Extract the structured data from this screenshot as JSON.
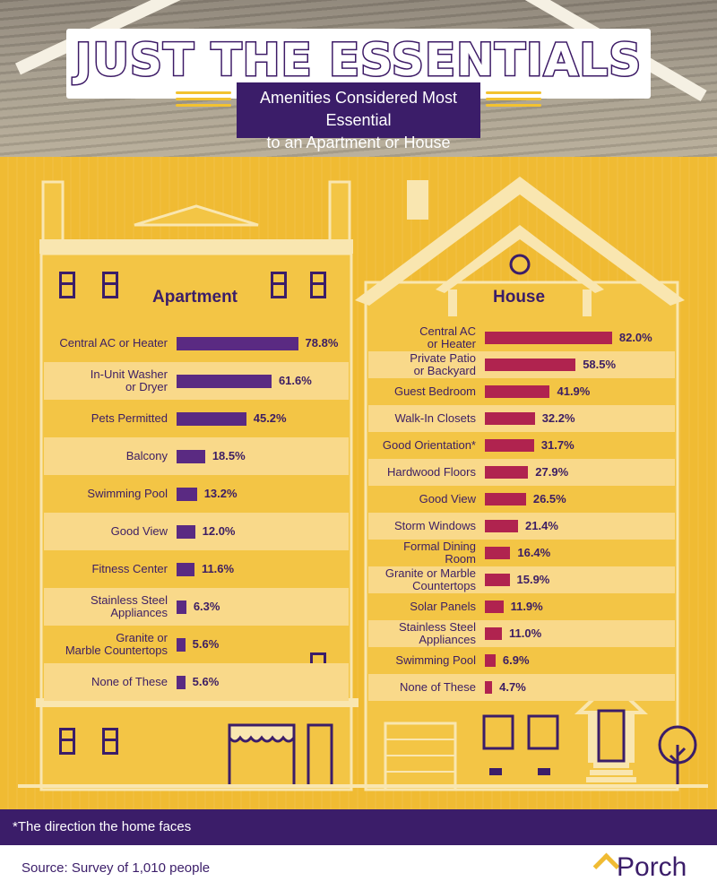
{
  "title": "JUST THE ESSENTIALS",
  "subtitle_line1": "Amenities Considered Most Essential",
  "subtitle_line2": "to an Apartment or House",
  "colors": {
    "apartment_bar": "#5a2a82",
    "house_bar": "#b0234f",
    "dark_purple": "#3b1d69",
    "panel_yellow": "#f0bb33"
  },
  "chart_data": [
    {
      "type": "bar",
      "title": "Apartment",
      "categories": [
        "Central AC or Heater",
        "In-Unit Washer or Dryer",
        "Pets Permitted",
        "Balcony",
        "Swimming Pool",
        "Good View",
        "Fitness Center",
        "Stainless Steel Appliances",
        "Granite or Marble Countertops",
        "None of These"
      ],
      "label_lines": [
        [
          "Central AC or Heater"
        ],
        [
          "In-Unit Washer",
          "or Dryer"
        ],
        [
          "Pets Permitted"
        ],
        [
          "Balcony"
        ],
        [
          "Swimming Pool"
        ],
        [
          "Good View"
        ],
        [
          "Fitness Center"
        ],
        [
          "Stainless Steel",
          "Appliances"
        ],
        [
          "Granite or",
          "Marble Countertops"
        ],
        [
          "None of These"
        ]
      ],
      "values": [
        78.8,
        61.6,
        45.2,
        18.5,
        13.2,
        12.0,
        11.6,
        6.3,
        5.6,
        5.6
      ],
      "value_labels": [
        "78.8%",
        "61.6%",
        "45.2%",
        "18.5%",
        "13.2%",
        "12.0%",
        "11.6%",
        "6.3%",
        "5.6%",
        "5.6%"
      ],
      "unit": "%",
      "orientation": "horizontal"
    },
    {
      "type": "bar",
      "title": "House",
      "categories": [
        "Central AC or Heater",
        "Private Patio or Backyard",
        "Guest Bedroom",
        "Walk-In Closets",
        "Good Orientation*",
        "Hardwood Floors",
        "Good View",
        "Storm Windows",
        "Formal Dining Room",
        "Granite or Marble Countertops",
        "Solar Panels",
        "Stainless Steel Appliances",
        "Swimming Pool",
        "None of These"
      ],
      "label_lines": [
        [
          "Central AC",
          "or Heater"
        ],
        [
          "Private Patio",
          "or Backyard"
        ],
        [
          "Guest Bedroom"
        ],
        [
          "Walk-In Closets"
        ],
        [
          "Good Orientation*"
        ],
        [
          "Hardwood Floors"
        ],
        [
          "Good View"
        ],
        [
          "Storm Windows"
        ],
        [
          "Formal Dining",
          "Room"
        ],
        [
          "Granite or Marble",
          "Countertops"
        ],
        [
          "Solar Panels"
        ],
        [
          "Stainless Steel",
          "Appliances"
        ],
        [
          "Swimming Pool"
        ],
        [
          "None of These"
        ]
      ],
      "values": [
        82.0,
        58.5,
        41.9,
        32.2,
        31.7,
        27.9,
        26.5,
        21.4,
        16.4,
        15.9,
        11.9,
        11.0,
        6.9,
        4.7
      ],
      "value_labels": [
        "82.0%",
        "58.5%",
        "41.9%",
        "32.2%",
        "31.7%",
        "27.9%",
        "26.5%",
        "21.4%",
        "16.4%",
        "15.9%",
        "11.9%",
        "11.0%",
        "6.9%",
        "4.7%"
      ],
      "unit": "%",
      "orientation": "horizontal"
    }
  ],
  "footnote": "*The direction the home faces",
  "source": "Source: Survey of 1,010 people",
  "logo_text": "Porch"
}
